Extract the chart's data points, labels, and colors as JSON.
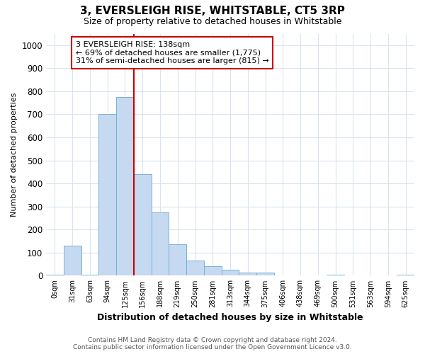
{
  "title1": "3, EVERSLEIGH RISE, WHITSTABLE, CT5 3RP",
  "title2": "Size of property relative to detached houses in Whitstable",
  "xlabel": "Distribution of detached houses by size in Whitstable",
  "ylabel": "Number of detached properties",
  "categories": [
    "0sqm",
    "31sqm",
    "63sqm",
    "94sqm",
    "125sqm",
    "156sqm",
    "188sqm",
    "219sqm",
    "250sqm",
    "281sqm",
    "313sqm",
    "344sqm",
    "375sqm",
    "406sqm",
    "438sqm",
    "469sqm",
    "500sqm",
    "531sqm",
    "563sqm",
    "594sqm",
    "625sqm"
  ],
  "values": [
    5,
    130,
    3,
    700,
    775,
    440,
    275,
    135,
    65,
    40,
    25,
    15,
    15,
    0,
    0,
    0,
    5,
    0,
    0,
    0,
    5
  ],
  "bar_color": "#c5d9f0",
  "bar_edge_color": "#7ab0d8",
  "annotation_text_line1": "3 EVERSLEIGH RISE: 138sqm",
  "annotation_text_line2": "← 69% of detached houses are smaller (1,775)",
  "annotation_text_line3": "31% of semi-detached houses are larger (815) →",
  "red_line_color": "#cc0000",
  "annotation_box_color": "#ffffff",
  "annotation_box_border": "#cc0000",
  "footer1": "Contains HM Land Registry data © Crown copyright and database right 2024.",
  "footer2": "Contains public sector information licensed under the Open Government Licence v3.0.",
  "ylim": [
    0,
    1050
  ],
  "yticks": [
    0,
    100,
    200,
    300,
    400,
    500,
    600,
    700,
    800,
    900,
    1000
  ],
  "background_color": "#ffffff",
  "grid_color": "#d8e4f0"
}
